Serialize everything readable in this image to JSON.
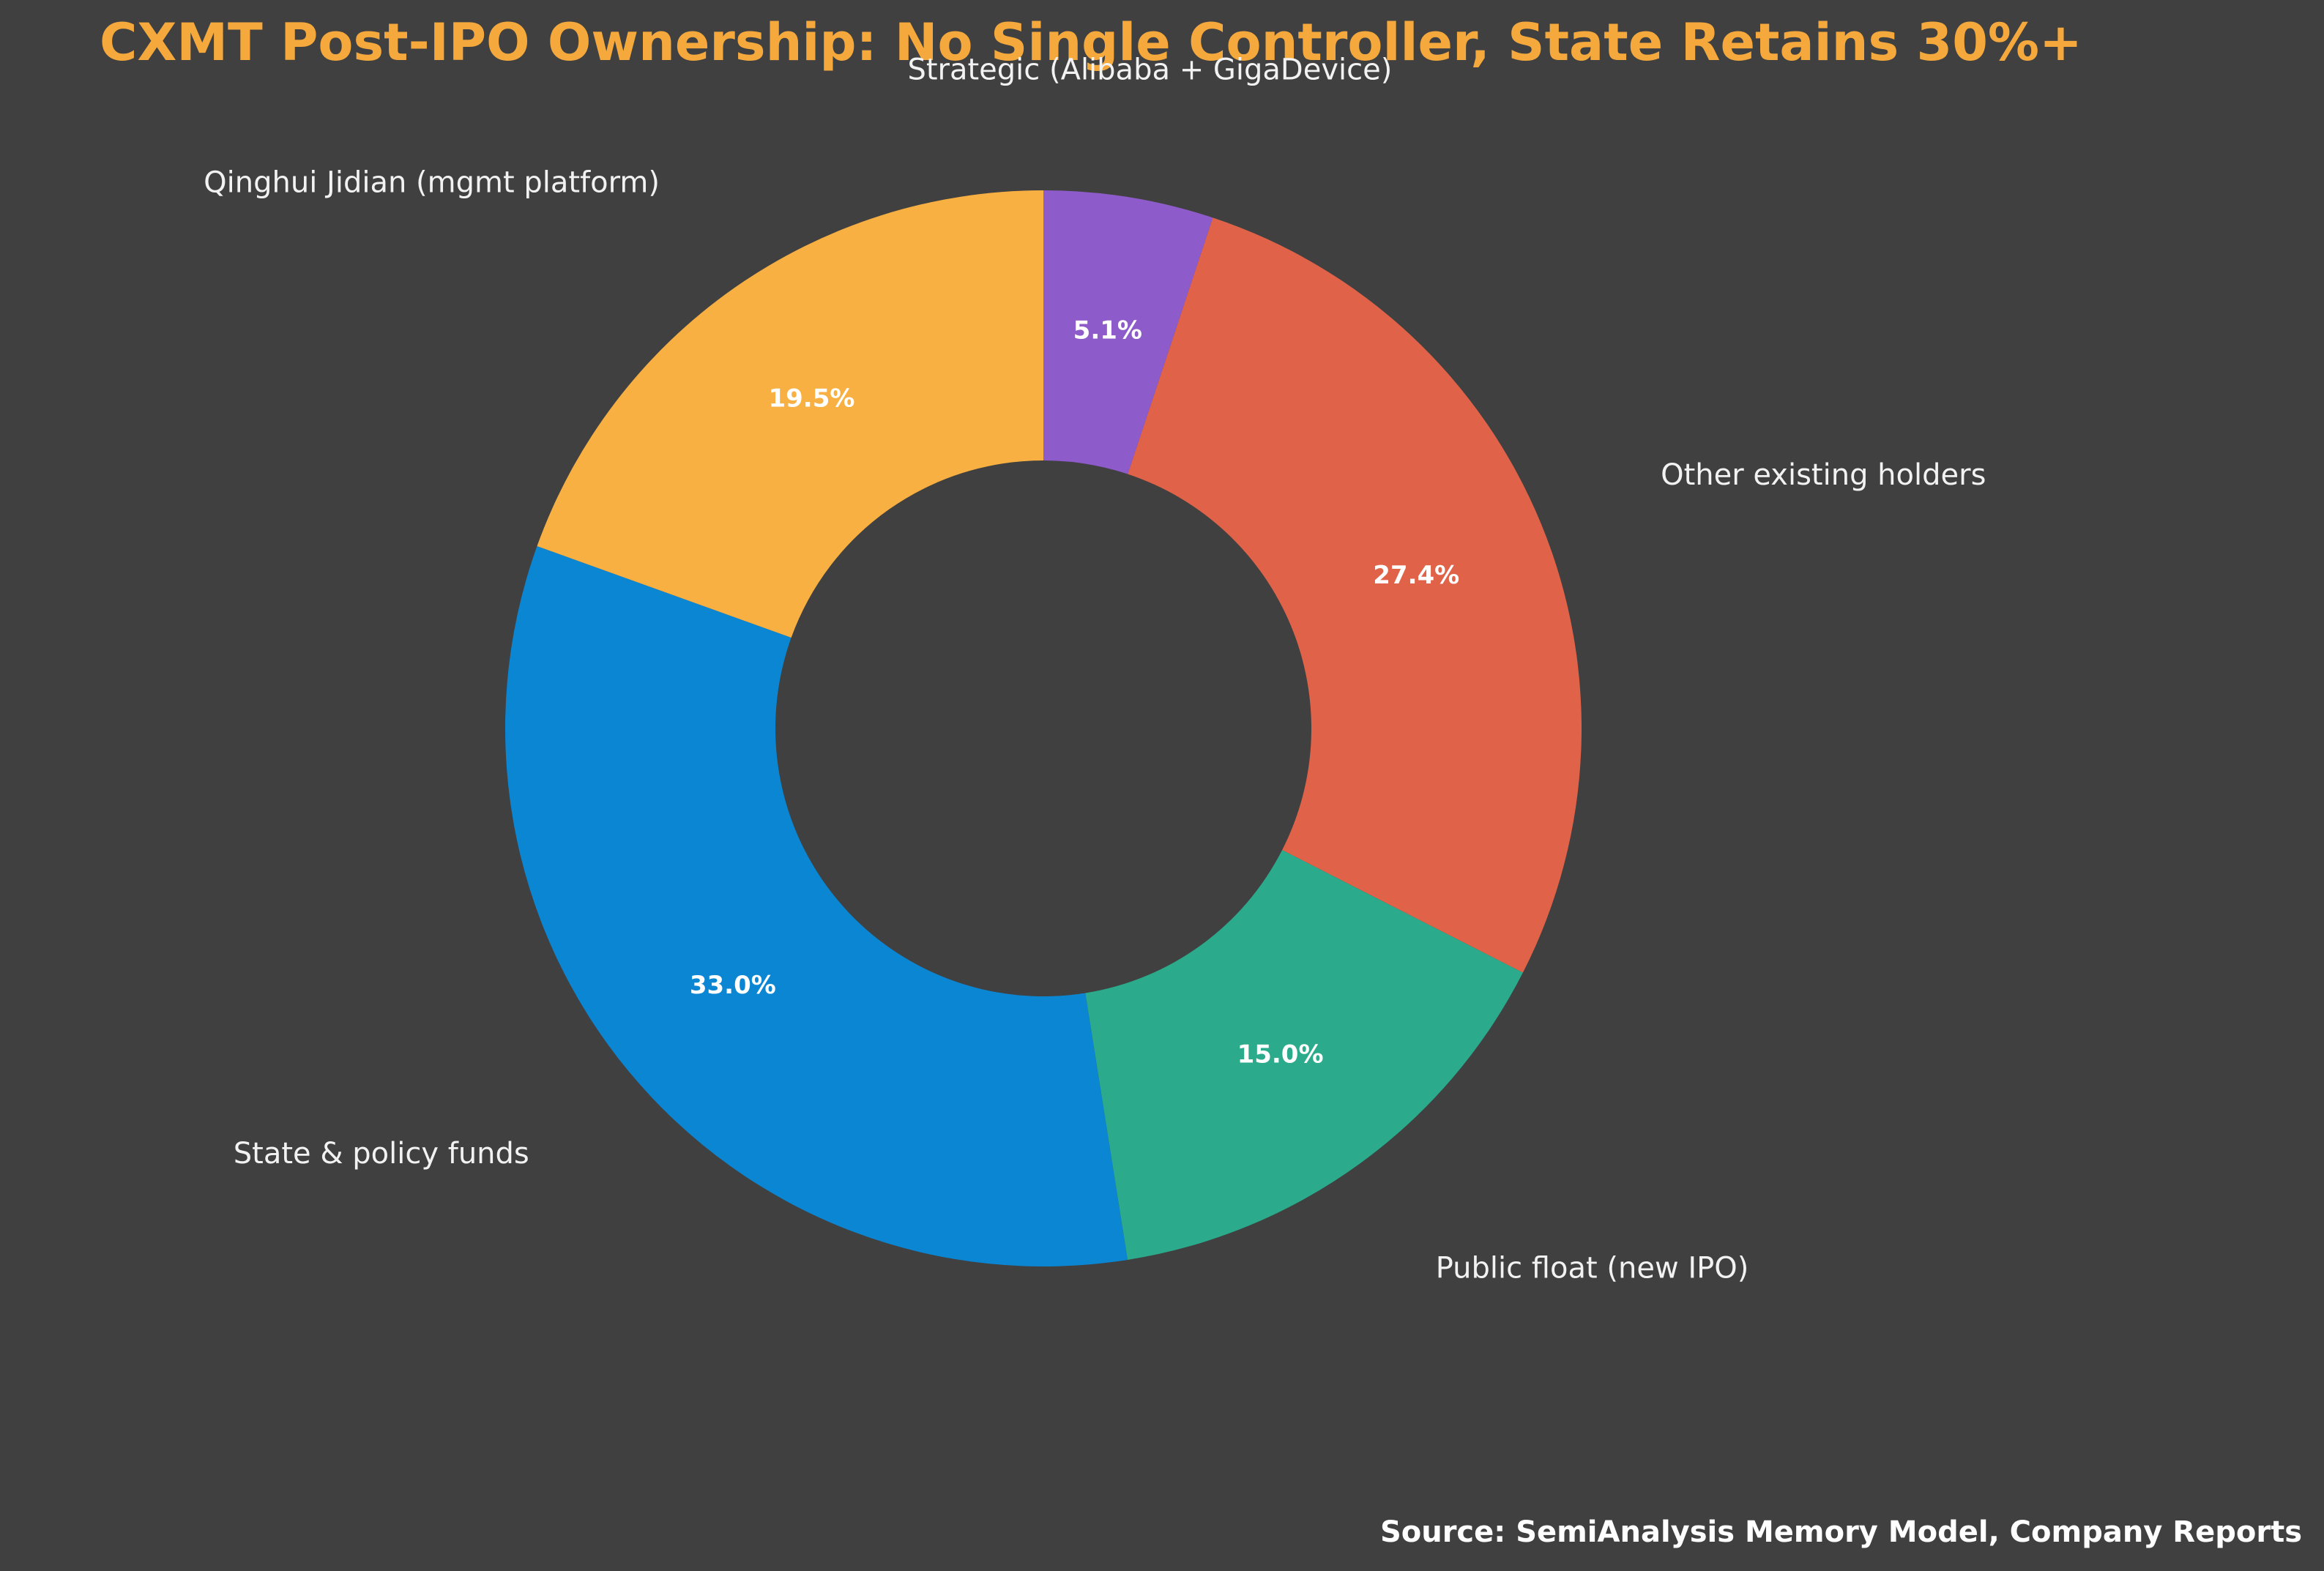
{
  "chart_data": {
    "type": "pie",
    "variant": "donut",
    "title": "CXMT Post-IPO Ownership: No Single Controller, State Retains 30%+",
    "title_color": "#F5A93D",
    "background_color": "#404040",
    "slices": [
      {
        "label": "Strategic (Alibaba + GigaDevice)",
        "value": 5.1,
        "value_label": "5.1%",
        "color": "#8E5BCB"
      },
      {
        "label": "Other existing holders",
        "value": 27.4,
        "value_label": "27.4%",
        "color": "#E06349"
      },
      {
        "label": "Public float (new IPO)",
        "value": 15.0,
        "value_label": "15.0%",
        "color": "#2BAA8C"
      },
      {
        "label": "State & policy funds",
        "value": 33.0,
        "value_label": "33.0%",
        "color": "#0B86D3"
      },
      {
        "label": "Qinghui Jidian (mgmt platform)",
        "value": 19.5,
        "value_label": "19.5%",
        "color": "#F8B042"
      }
    ],
    "start_angle": "12 o'clock",
    "direction": "clockwise",
    "source": "Source: SemiAnalysis Memory Model, Company Reports"
  }
}
